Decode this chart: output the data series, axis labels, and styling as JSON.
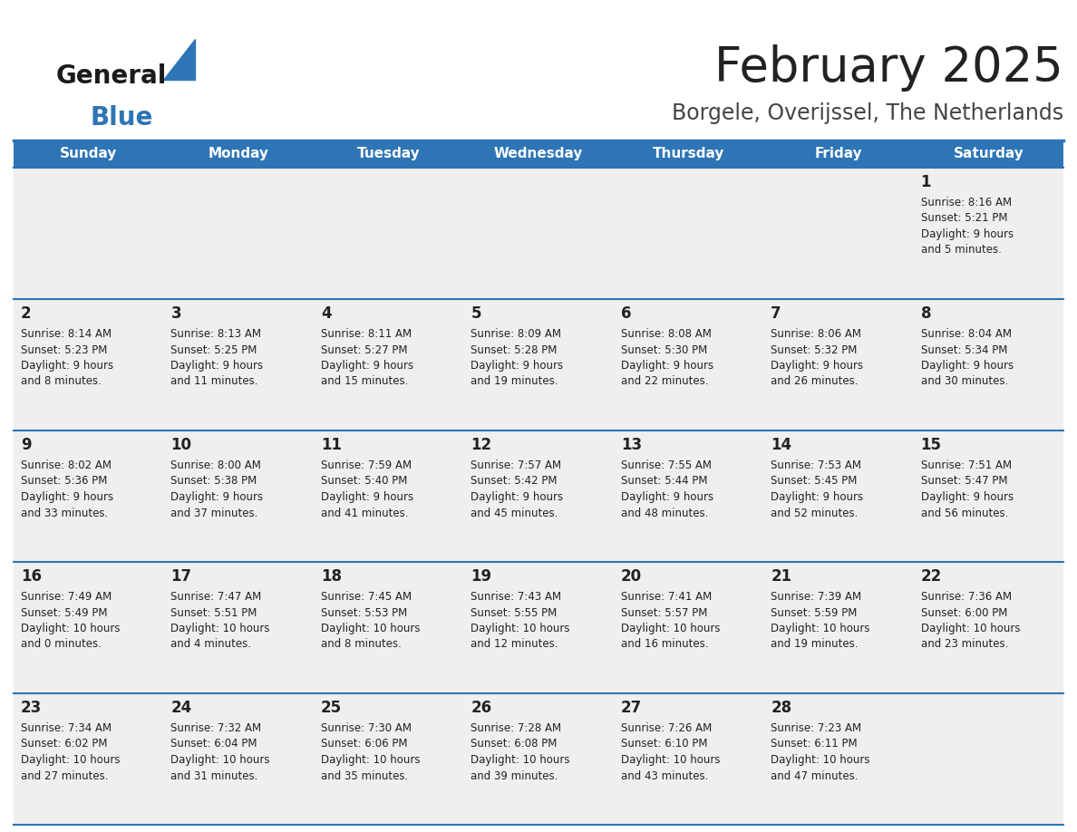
{
  "title": "February 2025",
  "subtitle": "Borgele, Overijssel, The Netherlands",
  "header_color": "#2E75B6",
  "header_text_color": "#FFFFFF",
  "title_color": "#222222",
  "subtitle_color": "#444444",
  "days_of_week": [
    "Sunday",
    "Monday",
    "Tuesday",
    "Wednesday",
    "Thursday",
    "Friday",
    "Saturday"
  ],
  "cell_bg": "#EFEFEF",
  "cell_bg_white": "#FFFFFF",
  "divider_color": "#2E75B6",
  "text_color": "#222222",
  "logo_general_color": "#1a1a1a",
  "logo_blue_color": "#2E75B6",
  "calendar_data": [
    [
      {
        "day": "",
        "info": ""
      },
      {
        "day": "",
        "info": ""
      },
      {
        "day": "",
        "info": ""
      },
      {
        "day": "",
        "info": ""
      },
      {
        "day": "",
        "info": ""
      },
      {
        "day": "",
        "info": ""
      },
      {
        "day": "1",
        "info": "Sunrise: 8:16 AM\nSunset: 5:21 PM\nDaylight: 9 hours\nand 5 minutes."
      }
    ],
    [
      {
        "day": "2",
        "info": "Sunrise: 8:14 AM\nSunset: 5:23 PM\nDaylight: 9 hours\nand 8 minutes."
      },
      {
        "day": "3",
        "info": "Sunrise: 8:13 AM\nSunset: 5:25 PM\nDaylight: 9 hours\nand 11 minutes."
      },
      {
        "day": "4",
        "info": "Sunrise: 8:11 AM\nSunset: 5:27 PM\nDaylight: 9 hours\nand 15 minutes."
      },
      {
        "day": "5",
        "info": "Sunrise: 8:09 AM\nSunset: 5:28 PM\nDaylight: 9 hours\nand 19 minutes."
      },
      {
        "day": "6",
        "info": "Sunrise: 8:08 AM\nSunset: 5:30 PM\nDaylight: 9 hours\nand 22 minutes."
      },
      {
        "day": "7",
        "info": "Sunrise: 8:06 AM\nSunset: 5:32 PM\nDaylight: 9 hours\nand 26 minutes."
      },
      {
        "day": "8",
        "info": "Sunrise: 8:04 AM\nSunset: 5:34 PM\nDaylight: 9 hours\nand 30 minutes."
      }
    ],
    [
      {
        "day": "9",
        "info": "Sunrise: 8:02 AM\nSunset: 5:36 PM\nDaylight: 9 hours\nand 33 minutes."
      },
      {
        "day": "10",
        "info": "Sunrise: 8:00 AM\nSunset: 5:38 PM\nDaylight: 9 hours\nand 37 minutes."
      },
      {
        "day": "11",
        "info": "Sunrise: 7:59 AM\nSunset: 5:40 PM\nDaylight: 9 hours\nand 41 minutes."
      },
      {
        "day": "12",
        "info": "Sunrise: 7:57 AM\nSunset: 5:42 PM\nDaylight: 9 hours\nand 45 minutes."
      },
      {
        "day": "13",
        "info": "Sunrise: 7:55 AM\nSunset: 5:44 PM\nDaylight: 9 hours\nand 48 minutes."
      },
      {
        "day": "14",
        "info": "Sunrise: 7:53 AM\nSunset: 5:45 PM\nDaylight: 9 hours\nand 52 minutes."
      },
      {
        "day": "15",
        "info": "Sunrise: 7:51 AM\nSunset: 5:47 PM\nDaylight: 9 hours\nand 56 minutes."
      }
    ],
    [
      {
        "day": "16",
        "info": "Sunrise: 7:49 AM\nSunset: 5:49 PM\nDaylight: 10 hours\nand 0 minutes."
      },
      {
        "day": "17",
        "info": "Sunrise: 7:47 AM\nSunset: 5:51 PM\nDaylight: 10 hours\nand 4 minutes."
      },
      {
        "day": "18",
        "info": "Sunrise: 7:45 AM\nSunset: 5:53 PM\nDaylight: 10 hours\nand 8 minutes."
      },
      {
        "day": "19",
        "info": "Sunrise: 7:43 AM\nSunset: 5:55 PM\nDaylight: 10 hours\nand 12 minutes."
      },
      {
        "day": "20",
        "info": "Sunrise: 7:41 AM\nSunset: 5:57 PM\nDaylight: 10 hours\nand 16 minutes."
      },
      {
        "day": "21",
        "info": "Sunrise: 7:39 AM\nSunset: 5:59 PM\nDaylight: 10 hours\nand 19 minutes."
      },
      {
        "day": "22",
        "info": "Sunrise: 7:36 AM\nSunset: 6:00 PM\nDaylight: 10 hours\nand 23 minutes."
      }
    ],
    [
      {
        "day": "23",
        "info": "Sunrise: 7:34 AM\nSunset: 6:02 PM\nDaylight: 10 hours\nand 27 minutes."
      },
      {
        "day": "24",
        "info": "Sunrise: 7:32 AM\nSunset: 6:04 PM\nDaylight: 10 hours\nand 31 minutes."
      },
      {
        "day": "25",
        "info": "Sunrise: 7:30 AM\nSunset: 6:06 PM\nDaylight: 10 hours\nand 35 minutes."
      },
      {
        "day": "26",
        "info": "Sunrise: 7:28 AM\nSunset: 6:08 PM\nDaylight: 10 hours\nand 39 minutes."
      },
      {
        "day": "27",
        "info": "Sunrise: 7:26 AM\nSunset: 6:10 PM\nDaylight: 10 hours\nand 43 minutes."
      },
      {
        "day": "28",
        "info": "Sunrise: 7:23 AM\nSunset: 6:11 PM\nDaylight: 10 hours\nand 47 minutes."
      },
      {
        "day": "",
        "info": ""
      }
    ]
  ]
}
